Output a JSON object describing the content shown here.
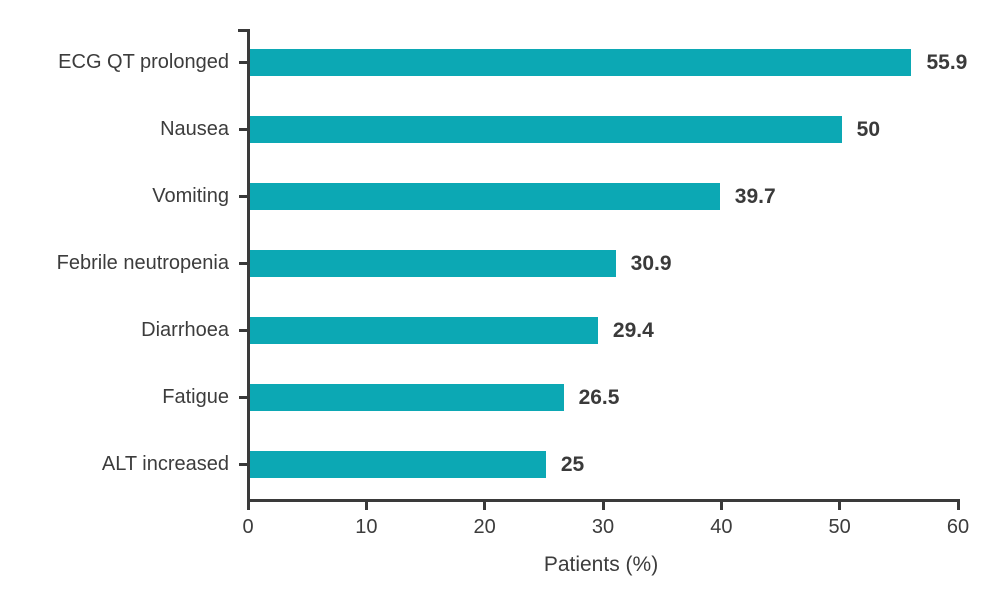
{
  "chart_data": {
    "type": "bar",
    "orientation": "horizontal",
    "title": "",
    "categories": [
      "ECG QT prolonged",
      "Nausea",
      "Vomiting",
      "Febrile neutropenia",
      "Diarrhoea",
      "Fatigue",
      "ALT increased"
    ],
    "values": [
      55.9,
      50,
      39.7,
      30.9,
      29.4,
      26.5,
      25
    ],
    "value_labels": [
      "55.9",
      "50",
      "39.7",
      "30.9",
      "29.4",
      "26.5",
      "25"
    ],
    "xlabel": "Patients (%)",
    "ylabel": "",
    "xticks": [
      0,
      10,
      20,
      30,
      40,
      50,
      60
    ],
    "xtick_labels": [
      "0",
      "10",
      "20",
      "30",
      "40",
      "50",
      "60"
    ],
    "xlim": [
      0,
      60
    ],
    "grid": false,
    "legend": null,
    "bar_color": "#0CA8B4",
    "axis_color": "#3A3A3A",
    "text_color": "#3C3C3C"
  }
}
